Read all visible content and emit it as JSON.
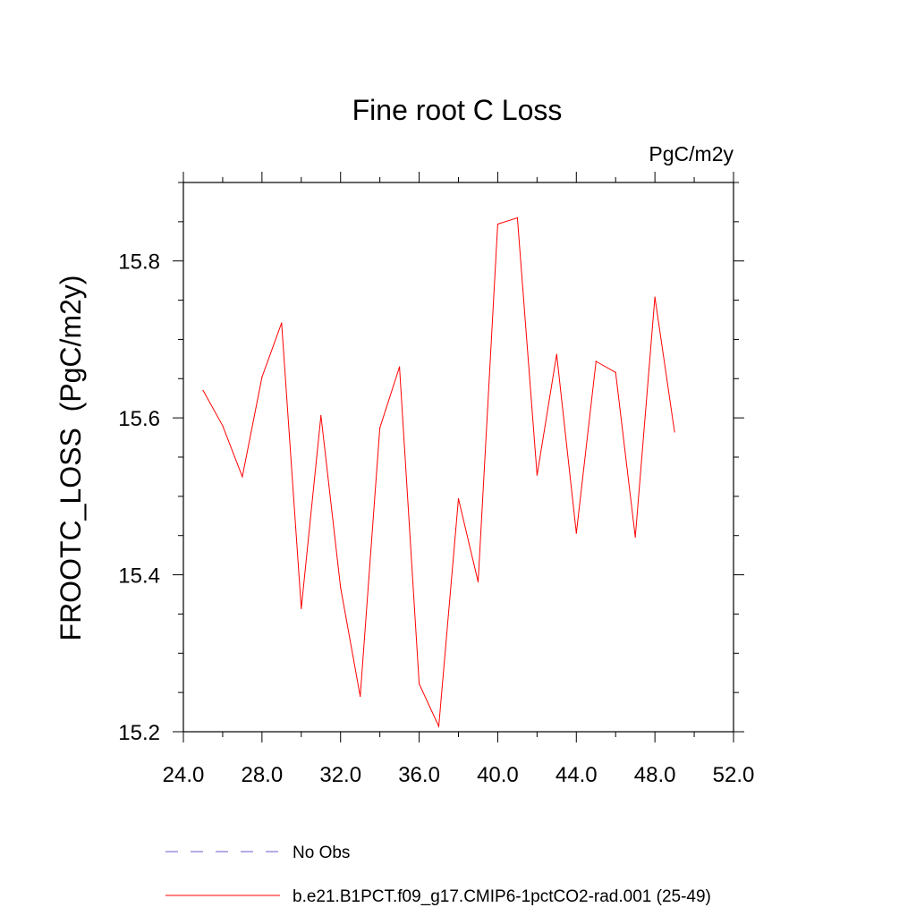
{
  "chart_data": {
    "type": "line",
    "title": "Fine root C Loss",
    "units_label": "PgC/m2y",
    "ylabel": "FROOTC_LOSS  (PgC/m2y)",
    "xlabel": "",
    "xlim": [
      24.0,
      52.0
    ],
    "ylim": [
      15.2,
      15.9
    ],
    "x_ticks": [
      24.0,
      28.0,
      32.0,
      36.0,
      40.0,
      44.0,
      48.0,
      52.0
    ],
    "x_tick_labels": [
      "24.0",
      "28.0",
      "32.0",
      "36.0",
      "40.0",
      "44.0",
      "48.0",
      "52.0"
    ],
    "y_ticks": [
      15.2,
      15.4,
      15.6,
      15.8
    ],
    "y_tick_labels": [
      "15.2",
      "15.4",
      "15.6",
      "15.8"
    ],
    "grid": false,
    "legend_position": "bottom",
    "series": [
      {
        "name": "b.e21.B1PCT.f09_g17.CMIP6-1pctCO2-rad.001 (25-49)",
        "color": "#ff0000",
        "style": "solid",
        "x": [
          25,
          26,
          27,
          28,
          29,
          30,
          31,
          32,
          33,
          34,
          35,
          36,
          37,
          38,
          39,
          40,
          41,
          42,
          43,
          44,
          45,
          46,
          47,
          48,
          49
        ],
        "values": [
          15.635,
          15.59,
          15.525,
          15.652,
          15.721,
          15.357,
          15.603,
          15.384,
          15.245,
          15.587,
          15.665,
          15.261,
          15.207,
          15.497,
          15.391,
          15.847,
          15.855,
          15.527,
          15.681,
          15.453,
          15.672,
          15.658,
          15.448,
          15.754,
          15.582
        ]
      },
      {
        "name": "No Obs",
        "color": "#6a5acd",
        "style": "dashed",
        "x": [],
        "values": []
      }
    ]
  }
}
